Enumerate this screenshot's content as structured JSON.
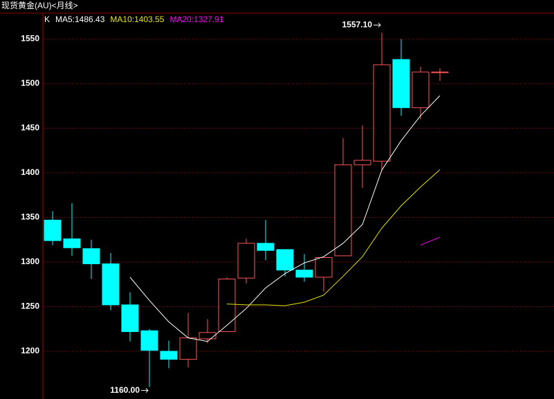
{
  "chart_data": {
    "type": "candlestick",
    "title": "现货黄金(AU)<月线>",
    "legend_label": "K",
    "categories": [
      null,
      null,
      null,
      null,
      null,
      null,
      null,
      null,
      null,
      null,
      null,
      null,
      null,
      null,
      null,
      null,
      null,
      null,
      null,
      null,
      null
    ],
    "open": [
      1347,
      1326,
      1315,
      1298,
      1252,
      1223,
      1200,
      1191,
      1214,
      1222,
      1282,
      1321,
      1314,
      1291,
      1283,
      1307,
      1409,
      1413,
      1527,
      1473,
      1513
    ],
    "high": [
      1357,
      1366,
      1325,
      1310,
      1266,
      1225,
      1212,
      1243,
      1236,
      1283,
      1326,
      1347,
      1313,
      1309,
      1306,
      1439,
      1453,
      1557.1,
      1550,
      1519,
      1517
    ],
    "low": [
      1319,
      1307,
      1281,
      1246,
      1211,
      1160,
      1181,
      1182,
      1209,
      1222,
      1276,
      1302,
      1284,
      1278,
      1267,
      1307,
      1383,
      1402,
      1464,
      1460,
      1503
    ],
    "close": [
      1324,
      1316,
      1298,
      1252,
      1222,
      1201,
      1191,
      1215,
      1221,
      1281,
      1321,
      1313,
      1291,
      1283,
      1305,
      1409,
      1414,
      1521,
      1473,
      1513,
      1513
    ],
    "up_color": "#ff5555",
    "down_color": "#00ffff",
    "series": [
      {
        "name": "MA5:1486.43",
        "color": "#ffffff",
        "values": [
          null,
          null,
          null,
          null,
          1283,
          1257,
          1233,
          1215,
          1211,
          1229,
          1248,
          1271,
          1287,
          1299,
          1306,
          1321,
          1342,
          1403,
          1436,
          1464,
          1486.43
        ]
      },
      {
        "name": "MA10:1403.55",
        "color": "#e6e600",
        "values": [
          null,
          null,
          null,
          null,
          null,
          null,
          null,
          null,
          null,
          1253,
          1252,
          1252,
          1251,
          1255,
          1263,
          1284,
          1306,
          1338,
          1363,
          1384,
          1403.55
        ]
      },
      {
        "name": "MA20:1327.91",
        "color": "#ff00ff",
        "values": [
          null,
          null,
          null,
          null,
          null,
          null,
          null,
          null,
          null,
          null,
          null,
          null,
          null,
          null,
          null,
          null,
          null,
          null,
          null,
          1319,
          1327.91
        ]
      }
    ],
    "annotations": [
      {
        "label": "1557.10",
        "value": 1557.1
      },
      {
        "label": "1160.00",
        "value": 1160
      }
    ],
    "ylim": [
      1146.5,
      1565
    ],
    "yticks": [
      1200,
      1250,
      1300,
      1350,
      1400,
      1450,
      1500,
      1550
    ],
    "grid": true
  }
}
